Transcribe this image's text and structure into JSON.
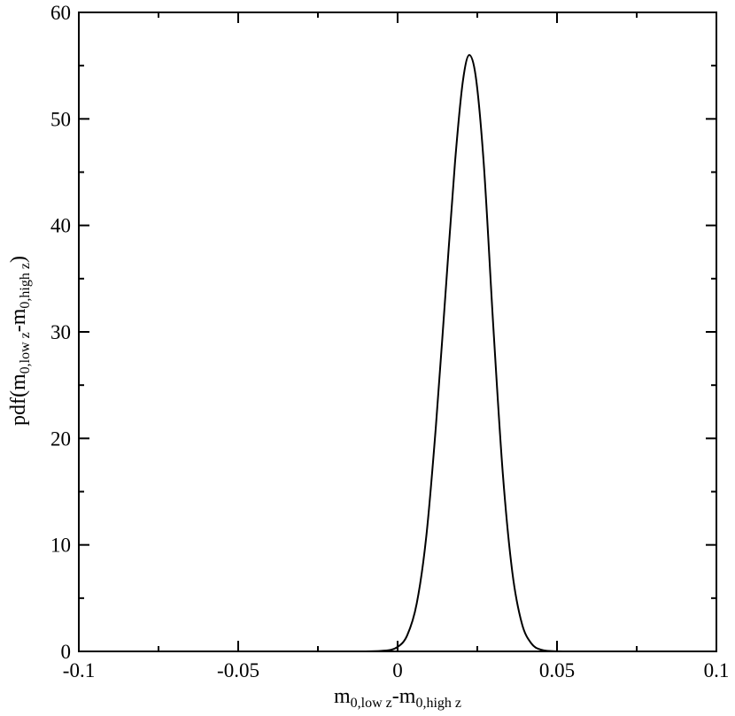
{
  "chart_data": {
    "type": "line",
    "title": "",
    "xlabel": {
      "parts": [
        {
          "text": "m",
          "sub": false
        },
        {
          "text": "0,low z",
          "sub": true
        },
        {
          "text": "-m",
          "sub": false
        },
        {
          "text": "0,high z",
          "sub": true
        }
      ]
    },
    "ylabel": {
      "parts": [
        {
          "text": "pdf(m",
          "sub": false
        },
        {
          "text": "0,low z",
          "sub": true
        },
        {
          "text": "-m",
          "sub": false
        },
        {
          "text": "0,high z",
          "sub": true
        },
        {
          "text": ")",
          "sub": false
        }
      ]
    },
    "xlim": [
      -0.1,
      0.1
    ],
    "ylim": [
      0,
      60
    ],
    "x_ticks": [
      -0.1,
      -0.05,
      0,
      0.05,
      0.1
    ],
    "x_tick_labels": [
      "-0.1",
      "-0.05",
      "0",
      "0.05",
      "0.1"
    ],
    "y_ticks": [
      0,
      10,
      20,
      30,
      40,
      50,
      60
    ],
    "y_tick_labels": [
      "0",
      "10",
      "20",
      "30",
      "40",
      "50",
      "60"
    ],
    "x_minor_step": 0.025,
    "y_minor_step": 5,
    "grid": false,
    "legend": "none",
    "line_color": "#000000",
    "series": [
      {
        "x": [
          -0.1,
          -0.01,
          -0.005,
          0.0,
          0.003,
          0.006,
          0.009,
          0.012,
          0.015,
          0.018,
          0.0205,
          0.0225,
          0.0245,
          0.027,
          0.03,
          0.033,
          0.036,
          0.039,
          0.042,
          0.045,
          0.05,
          0.055,
          0.1
        ],
        "y": [
          0,
          0.004,
          0.05,
          0.42,
          1.5,
          4.5,
          10.8,
          21.1,
          33.5,
          45.9,
          53.6,
          56.0,
          54.0,
          45.9,
          30.6,
          16.7,
          7.4,
          2.6,
          0.73,
          0.16,
          0.01,
          0,
          0
        ]
      }
    ]
  }
}
